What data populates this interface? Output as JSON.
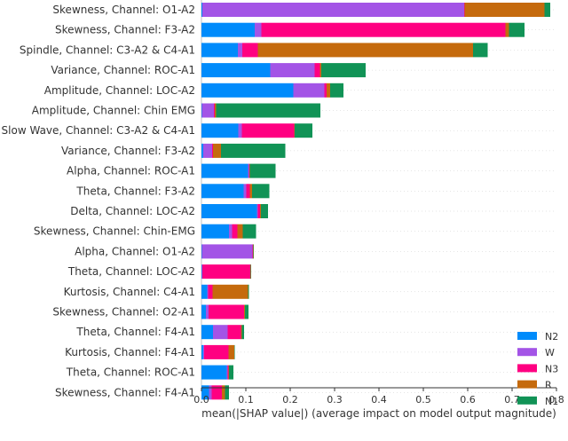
{
  "chart_data": {
    "type": "bar",
    "orientation": "horizontal",
    "stacked": true,
    "xlabel": "mean(|SHAP value|) (average impact on model output magnitude)",
    "xlim": [
      0,
      0.8
    ],
    "xticks": [
      0.0,
      0.1,
      0.2,
      0.3,
      0.4,
      0.5,
      0.6,
      0.7,
      0.8
    ],
    "xtick_labels": [
      "0.0",
      "0.1",
      "0.2",
      "0.3",
      "0.4",
      "0.5",
      "0.6",
      "0.7",
      "0.8"
    ],
    "legend_position": "bottom-right",
    "categories": [
      "Skewness, Channel: O1-A2",
      "Skewness, Channel: F3-A2",
      "Spindle, Channel: C3-A2 & C4-A1",
      "Variance, Channel: ROC-A1",
      "Amplitude, Channel: LOC-A2",
      "Amplitude, Channel: Chin EMG",
      "Slow Wave, Channel: C3-A2 & C4-A1",
      "Variance, Channel: F3-A2",
      "Alpha, Channel: ROC-A1",
      "Theta, Channel: F3-A2",
      "Delta, Channel: LOC-A2",
      "Skewness, Channel: Chin-EMG",
      "Alpha, Channel: O1-A2",
      "Theta, Channel: LOC-A2",
      "Kurtosis, Channel: C4-A1",
      "Skewness, Channel: O2-A1",
      "Theta, Channel: F4-A1",
      "Kurtosis, Channel: F4-A1",
      "Theta, Channel: ROC-A1",
      "Skewness, Channel: F4-A1"
    ],
    "series": [
      {
        "name": "N2",
        "color": "#008bfb",
        "values": [
          0.002,
          0.12,
          0.082,
          0.155,
          0.207,
          0.001,
          0.083,
          0.004,
          0.105,
          0.095,
          0.125,
          0.062,
          0.001,
          0.001,
          0.013,
          0.01,
          0.026,
          0.004,
          0.057,
          0.017
        ]
      },
      {
        "name": "W",
        "color": "#a354e6",
        "values": [
          0.59,
          0.015,
          0.01,
          0.1,
          0.07,
          0.027,
          0.008,
          0.02,
          0.002,
          0.006,
          0.002,
          0.007,
          0.114,
          0.001,
          0.002,
          0.006,
          0.033,
          0.002,
          0.002,
          0.006
        ]
      },
      {
        "name": "N3",
        "color": "#ff0081",
        "values": [
          0.001,
          0.55,
          0.035,
          0.012,
          0.005,
          0.002,
          0.118,
          0.002,
          0.001,
          0.008,
          0.005,
          0.012,
          0.001,
          0.108,
          0.01,
          0.08,
          0.03,
          0.055,
          0.002,
          0.023
        ]
      },
      {
        "name": "R",
        "color": "#c56a0d",
        "values": [
          0.18,
          0.008,
          0.485,
          0.003,
          0.008,
          0.003,
          0.001,
          0.018,
          0.001,
          0.005,
          0.002,
          0.012,
          0.001,
          0.001,
          0.08,
          0.002,
          0.002,
          0.013,
          0.001,
          0.007
        ]
      },
      {
        "name": "N1",
        "color": "#119356",
        "values": [
          0.013,
          0.035,
          0.033,
          0.1,
          0.03,
          0.235,
          0.04,
          0.145,
          0.058,
          0.039,
          0.016,
          0.03,
          0.001,
          0.001,
          0.002,
          0.008,
          0.005,
          0.001,
          0.01,
          0.009
        ]
      }
    ],
    "legend_order": [
      "N2",
      "W",
      "N3",
      "R",
      "N1"
    ]
  }
}
